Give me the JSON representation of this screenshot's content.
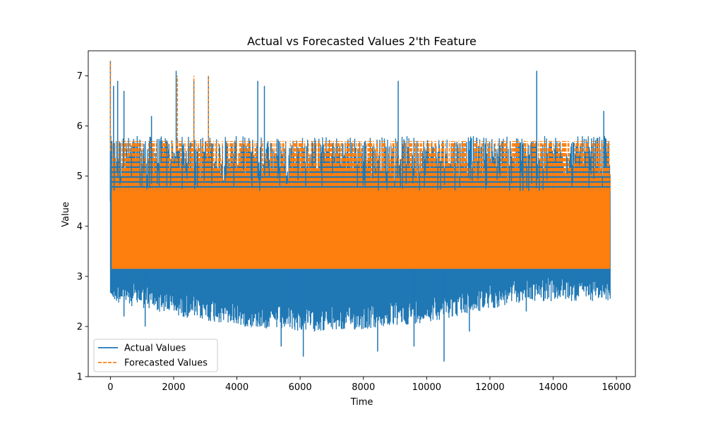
{
  "chart_data": {
    "type": "line",
    "title": "Actual vs Forecasted Values 2'th Feature",
    "xlabel": "Time",
    "ylabel": "Value",
    "xlim": [
      -700,
      16600
    ],
    "ylim": [
      1,
      7.5
    ],
    "x_ticks": [
      0,
      2000,
      4000,
      6000,
      8000,
      10000,
      12000,
      14000,
      16000
    ],
    "y_ticks": [
      1,
      2,
      3,
      4,
      5,
      6,
      7
    ],
    "grid": false,
    "legend_position": "lower-left",
    "series": [
      {
        "name": "Actual Values",
        "color": "#1f77b4",
        "style": "solid",
        "summary": {
          "x": [
            0,
            15800
          ],
          "typical_range": [
            3.0,
            4.8
          ],
          "min": 1.3,
          "max": 7.3
        },
        "spikes": [
          {
            "x": 0,
            "y": 7.3
          },
          {
            "x": 100,
            "y": 6.8
          },
          {
            "x": 230,
            "y": 6.9
          },
          {
            "x": 430,
            "y": 6.7
          },
          {
            "x": 1300,
            "y": 6.2
          },
          {
            "x": 2080,
            "y": 7.1
          },
          {
            "x": 2640,
            "y": 6.9
          },
          {
            "x": 3100,
            "y": 7.0
          },
          {
            "x": 4660,
            "y": 6.9
          },
          {
            "x": 4870,
            "y": 6.8
          },
          {
            "x": 9100,
            "y": 6.9
          },
          {
            "x": 13480,
            "y": 7.1
          },
          {
            "x": 15600,
            "y": 6.3
          }
        ],
        "dips": [
          {
            "x": 430,
            "y": 2.2
          },
          {
            "x": 1100,
            "y": 2.0
          },
          {
            "x": 5400,
            "y": 1.6
          },
          {
            "x": 6100,
            "y": 1.4
          },
          {
            "x": 8450,
            "y": 1.5
          },
          {
            "x": 9600,
            "y": 1.6
          },
          {
            "x": 10550,
            "y": 1.3
          },
          {
            "x": 11350,
            "y": 1.9
          },
          {
            "x": 13150,
            "y": 2.3
          },
          {
            "x": 14800,
            "y": 2.6
          }
        ]
      },
      {
        "name": "Forecasted Values",
        "color": "#ff7f0e",
        "style": "dashed",
        "summary": {
          "x": [
            0,
            15800
          ],
          "typical_range": [
            3.15,
            4.7
          ],
          "min": 3.1,
          "max": 7.3,
          "frequent_upper_level": 5.7
        },
        "spikes": [
          {
            "x": 0,
            "y": 7.3
          },
          {
            "x": 2120,
            "y": 7.0
          },
          {
            "x": 2640,
            "y": 7.0
          },
          {
            "x": 3100,
            "y": 7.0
          }
        ]
      }
    ]
  }
}
